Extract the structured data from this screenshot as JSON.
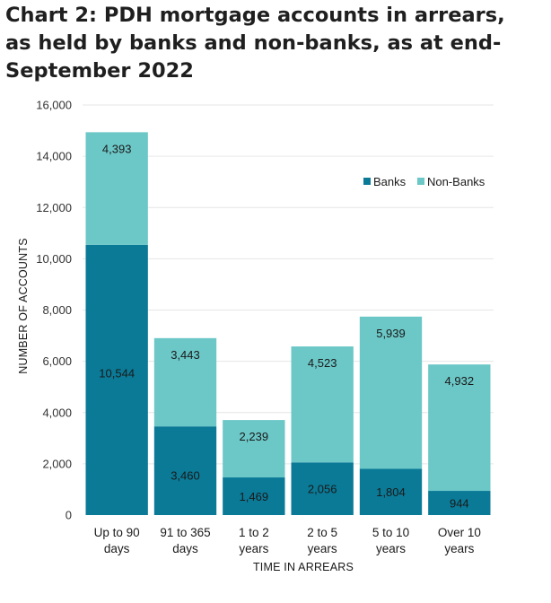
{
  "title_lines": [
    "Chart 2:  PDH mortgage accounts in arrears,",
    "as held by banks and non-banks, as at end-",
    "September 2022"
  ],
  "colors": {
    "banks": "#0a7a97",
    "non_banks": "#6cc7c7",
    "grid": "#e6e6e6"
  },
  "chart_data": {
    "type": "bar",
    "stacked": true,
    "categories": [
      [
        "Up to 90",
        "days"
      ],
      [
        "91 to 365",
        "days"
      ],
      [
        "1 to 2",
        "years"
      ],
      [
        "2 to 5",
        "years"
      ],
      [
        "5 to 10",
        "years"
      ],
      [
        "Over 10",
        "years"
      ]
    ],
    "series": [
      {
        "name": "Banks",
        "values": [
          10544,
          3460,
          1469,
          2056,
          1804,
          944
        ],
        "labels": [
          "10,544",
          "3,460",
          "1,469",
          "2,056",
          "1,804",
          "944"
        ]
      },
      {
        "name": "Non-Banks",
        "values": [
          4393,
          3443,
          2239,
          4523,
          5939,
          4932
        ],
        "labels": [
          "4,393",
          "3,443",
          "2,239",
          "4,523",
          "5,939",
          "4,932"
        ]
      }
    ],
    "xlabel": "TIME IN ARREARS",
    "ylabel": "NUMBER OF ACCOUNTS",
    "ylim": [
      0,
      16000
    ],
    "yticks": [
      0,
      2000,
      4000,
      6000,
      8000,
      10000,
      12000,
      14000,
      16000
    ],
    "ytick_labels": [
      "0",
      "2,000",
      "4,000",
      "6,000",
      "8,000",
      "10,000",
      "12,000",
      "14,000",
      "16,000"
    ],
    "grid": true,
    "legend": "top-right"
  }
}
